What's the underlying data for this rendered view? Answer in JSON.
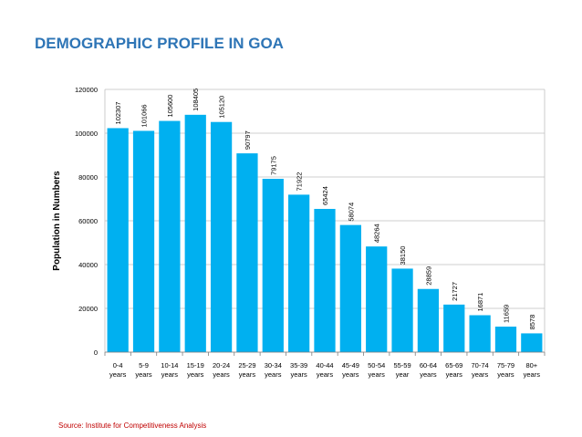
{
  "page": {
    "title": "DEMOGRAPHIC PROFILE IN GOA",
    "source": "Source: Institute for Competitiveness Analysis"
  },
  "chart_data": {
    "type": "bar",
    "categories": [
      [
        "0-4",
        "years"
      ],
      [
        "5-9",
        "years"
      ],
      [
        "10-14",
        "years"
      ],
      [
        "15-19",
        "years"
      ],
      [
        "20-24",
        "years"
      ],
      [
        "25-29",
        "years"
      ],
      [
        "30-34",
        "years"
      ],
      [
        "35-39",
        "years"
      ],
      [
        "40-44",
        "years"
      ],
      [
        "45-49",
        "years"
      ],
      [
        "50-54",
        "years"
      ],
      [
        "55-59",
        "year"
      ],
      [
        "60-64",
        "years"
      ],
      [
        "65-69",
        "years"
      ],
      [
        "70-74",
        "years"
      ],
      [
        "75-79",
        "years"
      ],
      [
        "80+",
        "years"
      ]
    ],
    "values": [
      102307,
      101066,
      105600,
      108405,
      105120,
      90797,
      79175,
      71922,
      65424,
      58074,
      48264,
      38150,
      28859,
      21727,
      16871,
      11659,
      8578
    ],
    "ylabel": "Population in Numbers",
    "xlabel": "",
    "ylim": [
      0,
      120000
    ],
    "yticks": [
      0,
      20000,
      40000,
      60000,
      80000,
      100000,
      120000
    ],
    "grid": true,
    "bar_color": "#00b0f0",
    "grid_color": "#bfbfbf"
  }
}
